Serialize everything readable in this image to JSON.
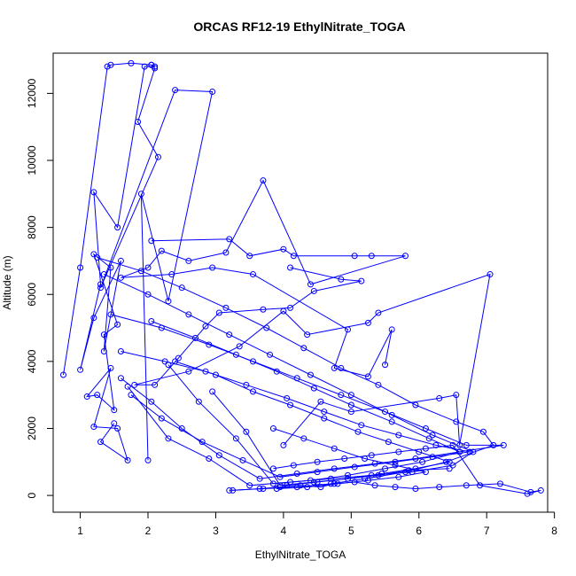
{
  "chart_data": {
    "type": "line",
    "title": "ORCAS RF12-19 EthylNitrate_TOGA",
    "xlabel": "EthylNitrate_TOGA",
    "ylabel": "Altitude (m)",
    "xlim": [
      0.6,
      7.9
    ],
    "ylim": [
      -500,
      13200
    ],
    "x_ticks": [
      1,
      2,
      3,
      4,
      5,
      6,
      7,
      8
    ],
    "y_ticks": [
      0,
      2000,
      4000,
      6000,
      8000,
      10000,
      12000
    ],
    "color": "#0000ff",
    "markers": "open-circle",
    "series": [
      {
        "x": [
          0.75,
          1.0,
          1.4,
          1.45,
          1.75,
          2.05,
          2.1,
          1.95,
          1.55,
          1.2,
          1.3,
          1.0,
          1.2,
          1.6,
          1.35,
          1.45,
          1.2,
          1.55,
          1.35,
          1.5,
          1.25,
          1.1,
          1.45,
          1.2,
          1.55,
          1.7,
          1.3,
          1.5
        ],
        "y": [
          3600,
          6800,
          12800,
          12850,
          12900,
          12850,
          12800,
          12800,
          8000,
          9050,
          6300,
          3750,
          5300,
          7000,
          4300,
          6800,
          7200,
          5100,
          4800,
          2550,
          3000,
          2950,
          3800,
          2050,
          2000,
          1050,
          1600,
          2150
        ]
      },
      {
        "x": [
          2.05,
          2.1,
          1.85,
          2.15,
          1.3,
          2.4,
          2.95,
          2.3,
          1.9,
          2.0
        ],
        "y": [
          12850,
          12750,
          11150,
          10100,
          6200,
          12100,
          12050,
          5800,
          9000,
          1050
        ]
      },
      {
        "x": [
          2.05,
          3.2,
          3.5,
          4.0,
          4.15,
          5.05,
          5.3,
          5.8,
          4.4,
          3.7,
          3.15,
          2.6,
          2.2,
          2.0,
          1.6,
          2.35,
          2.95,
          3.55,
          4.95,
          4.75,
          5.25,
          5.6,
          5.5
        ],
        "y": [
          7600,
          7650,
          7150,
          7350,
          7150,
          7150,
          7150,
          7150,
          6300,
          9400,
          7250,
          7000,
          7300,
          6800,
          6500,
          6600,
          6800,
          6600,
          4950,
          3800,
          3550,
          4950,
          3900
        ]
      },
      {
        "x": [
          4.1,
          4.85,
          5.15,
          4.45,
          4.1,
          3.7,
          3.05,
          2.85,
          2.45,
          2.1,
          1.8,
          2.6,
          3.35,
          4.0,
          4.35,
          5.25,
          5.4,
          7.05,
          6.6,
          6.55,
          6.3,
          5.0,
          4.55,
          4.0
        ],
        "y": [
          6800,
          6450,
          6400,
          6100,
          5600,
          5550,
          5450,
          5050,
          4100,
          3300,
          3300,
          3700,
          4450,
          5500,
          4800,
          5150,
          5450,
          6600,
          1500,
          3000,
          2900,
          2500,
          2800,
          1500
        ]
      },
      {
        "x": [
          3.25,
          3.65,
          3.95,
          4.25,
          4.55,
          4.75,
          5.05,
          5.35,
          5.65,
          5.95,
          6.3,
          6.7,
          7.2,
          7.65,
          7.8,
          7.6,
          6.9,
          6.5,
          6.1,
          5.7,
          5.3,
          4.9,
          4.5,
          4.15,
          3.85
        ],
        "y": [
          150,
          200,
          250,
          300,
          250,
          350,
          400,
          300,
          250,
          200,
          250,
          300,
          350,
          100,
          150,
          50,
          300,
          1500,
          1400,
          1300,
          1200,
          1100,
          1000,
          900,
          800
        ]
      },
      {
        "x": [
          1.25,
          1.9,
          2.5,
          3.15,
          3.75,
          4.3,
          4.85,
          5.4,
          5.95,
          6.55,
          6.95,
          7.1,
          6.4,
          5.8,
          5.2,
          4.7,
          4.2,
          3.7,
          3.2
        ],
        "y": [
          7100,
          6700,
          6200,
          5600,
          5000,
          4400,
          3800,
          3300,
          2700,
          2200,
          1900,
          1500,
          1000,
          700,
          500,
          350,
          250,
          200,
          150
        ]
      },
      {
        "x": [
          1.35,
          2.0,
          2.6,
          3.2,
          3.8,
          4.4,
          5.0,
          5.6,
          6.2,
          6.8,
          6.5,
          5.9,
          5.3,
          4.7,
          4.1,
          3.5,
          2.9,
          2.3,
          1.7
        ],
        "y": [
          6600,
          6000,
          5400,
          4800,
          4200,
          3600,
          3000,
          2400,
          1800,
          1300,
          900,
          700,
          600,
          500,
          400,
          300,
          1100,
          1700,
          3250
        ]
      },
      {
        "x": [
          1.45,
          2.2,
          2.9,
          3.55,
          4.2,
          4.85,
          5.5,
          6.1,
          6.7,
          7.25,
          6.6,
          5.95,
          5.35,
          4.75,
          4.2,
          3.65,
          3.05,
          2.5,
          2.05,
          1.6
        ],
        "y": [
          5400,
          5000,
          4500,
          4000,
          3500,
          3000,
          2500,
          2000,
          1500,
          1500,
          1300,
          1100,
          950,
          800,
          650,
          500,
          1200,
          2000,
          2800,
          3500
        ]
      },
      {
        "x": [
          1.6,
          2.25,
          2.85,
          3.45,
          4.05,
          4.6,
          5.15,
          5.7,
          6.25,
          6.75,
          6.2,
          5.65,
          5.05,
          4.5,
          3.95,
          3.4,
          2.8,
          2.2,
          1.75
        ],
        "y": [
          4300,
          4000,
          3700,
          3300,
          2900,
          2500,
          2100,
          1800,
          1500,
          1300,
          1150,
          1000,
          850,
          700,
          550,
          1050,
          1600,
          2300,
          3000
        ]
      },
      {
        "x": [
          2.05,
          2.7,
          3.3,
          3.9,
          4.45,
          5.0,
          5.6,
          6.15,
          6.6,
          6.05,
          5.5,
          4.95,
          4.4,
          3.85,
          3.3,
          2.75,
          2.3
        ],
        "y": [
          5200,
          4700,
          4200,
          3700,
          3200,
          2700,
          2200,
          1700,
          1300,
          1000,
          800,
          600,
          450,
          350,
          1700,
          2800,
          3900
        ]
      },
      {
        "x": [
          2.4,
          3.0,
          3.55,
          4.1,
          4.6,
          5.1,
          5.55,
          6.0,
          6.45,
          5.95,
          5.45,
          4.95,
          4.45,
          3.95,
          3.45,
          2.95
        ],
        "y": [
          4000,
          3600,
          3100,
          2700,
          2300,
          1900,
          1600,
          1300,
          1000,
          800,
          650,
          500,
          400,
          300,
          1900,
          3100
        ]
      },
      {
        "x": [
          3.85,
          4.3,
          4.75,
          5.2,
          5.65,
          6.1,
          5.7,
          5.25,
          4.8,
          4.35,
          3.9,
          4.05,
          4.5,
          4.95,
          5.4,
          5.85,
          6.45
        ],
        "y": [
          2000,
          1700,
          1400,
          1100,
          900,
          700,
          550,
          450,
          350,
          250,
          200,
          300,
          400,
          500,
          600,
          750,
          800
        ]
      }
    ]
  }
}
